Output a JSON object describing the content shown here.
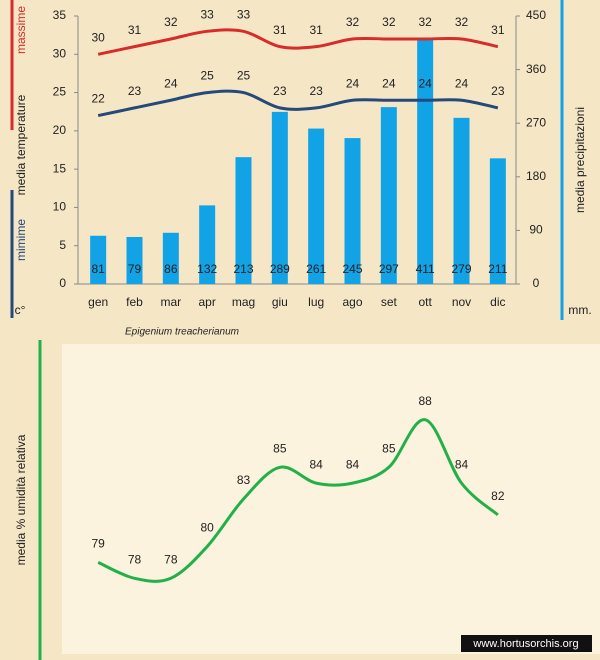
{
  "chart_data": [
    {
      "type": "bar",
      "ylabel": "media  temperature",
      "yunit": "c°",
      "y2unit": "mm.",
      "caption": "Epigenium treacherianum",
      "categories": [
        "gen",
        "feb",
        "mar",
        "apr",
        "mag",
        "giu",
        "lug",
        "ago",
        "set",
        "ott",
        "nov",
        "dic"
      ],
      "ylim": [
        0,
        35
      ],
      "yticks": [
        0,
        5,
        10,
        15,
        20,
        25,
        30,
        35
      ],
      "y2lim": [
        0,
        450
      ],
      "y2ticks": [
        0,
        90,
        180,
        270,
        360,
        450
      ],
      "series": [
        {
          "name": "media precipitazioni",
          "type": "bar",
          "axis": "y2",
          "color": "#12a2e6",
          "values": [
            81,
            79,
            86,
            132,
            213,
            289,
            261,
            245,
            297,
            411,
            279,
            211
          ]
        },
        {
          "name": "massime",
          "type": "line",
          "color": "#d82b2b",
          "values": [
            30,
            31,
            32,
            33,
            33,
            31,
            31,
            32,
            32,
            32,
            32,
            31
          ]
        },
        {
          "name": "mimime",
          "type": "line",
          "color": "#24497a",
          "values": [
            22,
            23,
            24,
            25,
            25,
            23,
            23,
            24,
            24,
            24,
            24,
            23
          ]
        }
      ]
    },
    {
      "type": "line",
      "ylabel": "media % umidità relativa",
      "ylim": [
        76,
        90
      ],
      "color": "#22b04a",
      "values": [
        79,
        78,
        78,
        80,
        83,
        85,
        84,
        84,
        85,
        88,
        84,
        82
      ]
    }
  ],
  "watermark": "www.hortusorchis.org"
}
